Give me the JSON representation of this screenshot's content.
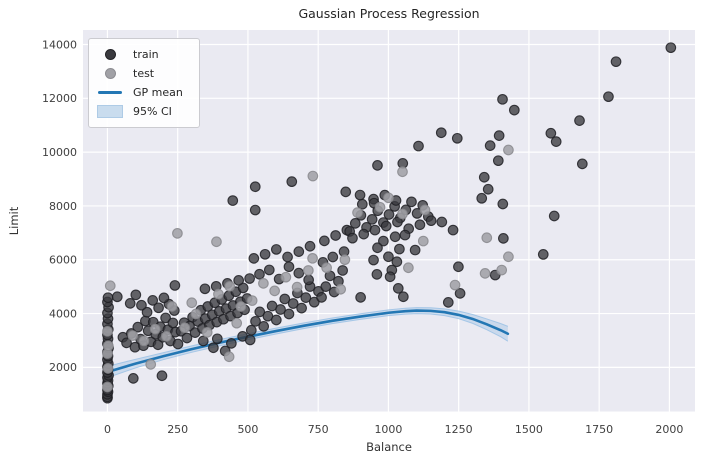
{
  "chart_data": {
    "type": "scatter",
    "title": "Gaussian Process Regression",
    "xlabel": "Balance",
    "ylabel": "Limit",
    "xlim": [
      -87,
      2091
    ],
    "ylim": [
      360,
      14540
    ],
    "xticks": [
      0,
      250,
      500,
      750,
      1000,
      1250,
      1500,
      1750,
      2000
    ],
    "yticks": [
      2000,
      4000,
      6000,
      8000,
      10000,
      12000,
      14000
    ],
    "grid": true,
    "legend_position": "upper-left",
    "style": {
      "plot_background": "#eaeaf2",
      "grid_color": "#ffffff",
      "tick_label_color": "#404040",
      "text_color": "#262626",
      "train_color": "#3a3a3f",
      "train_edge": "#1f1f23",
      "test_color": "#a1a1a6",
      "test_edge": "#87878c",
      "line_color": "#2377b4",
      "band_color": "#aecbe8",
      "band_edge": "#9ec3e6"
    },
    "series": [
      {
        "name": "train",
        "type": "scatter",
        "color": "#3a3a3f",
        "points": [
          [
            0,
            855
          ],
          [
            0,
            905
          ],
          [
            0,
            1000
          ],
          [
            2,
            1093
          ],
          [
            0,
            1160
          ],
          [
            3,
            1311
          ],
          [
            0,
            1410
          ],
          [
            2,
            1511
          ],
          [
            0,
            1617
          ],
          [
            4,
            1705
          ],
          [
            0,
            1809
          ],
          [
            2,
            1911
          ],
          [
            0,
            2021
          ],
          [
            3,
            2137
          ],
          [
            0,
            2290
          ],
          [
            2,
            2420
          ],
          [
            0,
            2570
          ],
          [
            4,
            2720
          ],
          [
            0,
            2880
          ],
          [
            2,
            3064
          ],
          [
            0,
            3210
          ],
          [
            3,
            3411
          ],
          [
            0,
            3617
          ],
          [
            2,
            3810
          ],
          [
            0,
            4020
          ],
          [
            4,
            4235
          ],
          [
            0,
            4430
          ],
          [
            2,
            4591
          ],
          [
            35,
            4624
          ],
          [
            81,
            4380
          ],
          [
            92,
            1592
          ],
          [
            194,
            1688
          ],
          [
            55,
            3120
          ],
          [
            68,
            2910
          ],
          [
            85,
            3260
          ],
          [
            98,
            2750
          ],
          [
            108,
            3495
          ],
          [
            118,
            3052
          ],
          [
            128,
            2806
          ],
          [
            135,
            3722
          ],
          [
            145,
            3360
          ],
          [
            155,
            2950
          ],
          [
            163,
            3680
          ],
          [
            172,
            3230
          ],
          [
            180,
            2842
          ],
          [
            188,
            3510
          ],
          [
            197,
            3121
          ],
          [
            207,
            3838
          ],
          [
            215,
            3400
          ],
          [
            224,
            2980
          ],
          [
            233,
            3652
          ],
          [
            242,
            3310
          ],
          [
            251,
            2871
          ],
          [
            238,
            4112
          ],
          [
            219,
            4351
          ],
          [
            201,
            4583
          ],
          [
            182,
            4214
          ],
          [
            161,
            4490
          ],
          [
            141,
            4051
          ],
          [
            121,
            4310
          ],
          [
            101,
            4697
          ],
          [
            240,
            5046
          ],
          [
            262,
            3342
          ],
          [
            273,
            3661
          ],
          [
            283,
            3093
          ],
          [
            292,
            3533
          ],
          [
            303,
            3866
          ],
          [
            312,
            3292
          ],
          [
            322,
            3705
          ],
          [
            332,
            4123
          ],
          [
            338,
            3444
          ],
          [
            348,
            3812
          ],
          [
            357,
            4265
          ],
          [
            363,
            3571
          ],
          [
            373,
            3954
          ],
          [
            382,
            4403
          ],
          [
            389,
            3682
          ],
          [
            398,
            4081
          ],
          [
            407,
            4522
          ],
          [
            413,
            3791
          ],
          [
            422,
            4183
          ],
          [
            432,
            4662
          ],
          [
            438,
            3904
          ],
          [
            447,
            4302
          ],
          [
            457,
            4812
          ],
          [
            463,
            4022
          ],
          [
            473,
            4441
          ],
          [
            483,
            4953
          ],
          [
            488,
            4141
          ],
          [
            497,
            4560
          ],
          [
            467,
            5234
          ],
          [
            427,
            5121
          ],
          [
            387,
            5012
          ],
          [
            347,
            4921
          ],
          [
            377,
            2730
          ],
          [
            419,
            2608
          ],
          [
            341,
            2981
          ],
          [
            391,
            3062
          ],
          [
            441,
            2892
          ],
          [
            481,
            3153
          ],
          [
            508,
            3021
          ],
          [
            512,
            3381
          ],
          [
            527,
            3712
          ],
          [
            542,
            4064
          ],
          [
            556,
            3524
          ],
          [
            571,
            3903
          ],
          [
            586,
            4281
          ],
          [
            601,
            3762
          ],
          [
            616,
            4152
          ],
          [
            631,
            4543
          ],
          [
            646,
            3983
          ],
          [
            661,
            4373
          ],
          [
            676,
            4764
          ],
          [
            691,
            4203
          ],
          [
            706,
            4593
          ],
          [
            721,
            5004
          ],
          [
            736,
            4424
          ],
          [
            751,
            4824
          ],
          [
            716,
            5253
          ],
          [
            681,
            5503
          ],
          [
            646,
            5742
          ],
          [
            611,
            5283
          ],
          [
            576,
            5622
          ],
          [
            541,
            5462
          ],
          [
            506,
            5302
          ],
          [
            521,
            6051
          ],
          [
            561,
            6203
          ],
          [
            601,
            6384
          ],
          [
            641,
            6103
          ],
          [
            681,
            6303
          ],
          [
            721,
            6503
          ],
          [
            446,
            8200
          ],
          [
            526,
            8715
          ],
          [
            526,
            7848
          ],
          [
            656,
            8903
          ],
          [
            848,
            8524
          ],
          [
            762,
            4602
          ],
          [
            777,
            5002
          ],
          [
            792,
            5403
          ],
          [
            807,
            4803
          ],
          [
            822,
            5203
          ],
          [
            837,
            5603
          ],
          [
            767,
            5903
          ],
          [
            802,
            6103
          ],
          [
            842,
            6303
          ],
          [
            772,
            6703
          ],
          [
            812,
            6903
          ],
          [
            852,
            7103
          ],
          [
            862,
            7053
          ],
          [
            882,
            7353
          ],
          [
            902,
            7653
          ],
          [
            922,
            7203
          ],
          [
            942,
            7503
          ],
          [
            962,
            7823
          ],
          [
            982,
            7383
          ],
          [
            1002,
            7683
          ],
          [
            1022,
            7983
          ],
          [
            1042,
            7553
          ],
          [
            1062,
            7853
          ],
          [
            1082,
            8153
          ],
          [
            1102,
            7723
          ],
          [
            1122,
            8023
          ],
          [
            1142,
            7603
          ],
          [
            907,
            8063
          ],
          [
            947,
            8253
          ],
          [
            987,
            8403
          ],
          [
            1027,
            8203
          ],
          [
            872,
            6803
          ],
          [
            912,
            6953
          ],
          [
            952,
            7103
          ],
          [
            992,
            7253
          ],
          [
            1032,
            7403
          ],
          [
            1072,
            7153
          ],
          [
            1112,
            7303
          ],
          [
            1152,
            7453
          ],
          [
            899,
            8405
          ],
          [
            949,
            8103
          ],
          [
            961,
            9508
          ],
          [
            1051,
            9583
          ],
          [
            901,
            4602
          ],
          [
            1035,
            4937
          ],
          [
            1053,
            4625
          ],
          [
            1213,
            4416
          ],
          [
            1255,
            4751
          ],
          [
            1249,
            5740
          ],
          [
            982,
            6695
          ],
          [
            1024,
            6855
          ],
          [
            1059,
            6918
          ],
          [
            961,
            6446
          ],
          [
            1039,
            6397
          ],
          [
            1095,
            6360
          ],
          [
            1000,
            6112
          ],
          [
            947,
            5989
          ],
          [
            1030,
            5926
          ],
          [
            1012,
            5617
          ],
          [
            959,
            5457
          ],
          [
            1006,
            5368
          ],
          [
            1188,
            10722
          ],
          [
            1107,
            10226
          ],
          [
            1245,
            10515
          ],
          [
            1190,
            7403
          ],
          [
            1230,
            7103
          ],
          [
            1406,
            11963
          ],
          [
            1448,
            11563
          ],
          [
            1394,
            10613
          ],
          [
            1362,
            10242
          ],
          [
            1391,
            9683
          ],
          [
            1341,
            9066
          ],
          [
            1355,
            8620
          ],
          [
            1332,
            8285
          ],
          [
            1407,
            8073
          ],
          [
            1409,
            6795
          ],
          [
            1380,
            5432
          ],
          [
            1551,
            6199
          ],
          [
            1578,
            10703
          ],
          [
            1597,
            10392
          ],
          [
            1690,
            9563
          ],
          [
            1590,
            7627
          ],
          [
            1680,
            11172
          ],
          [
            1783,
            12062
          ],
          [
            1810,
            13363
          ],
          [
            2005,
            13883
          ]
        ]
      },
      {
        "name": "test",
        "type": "scatter",
        "color": "#a1a1a6",
        "points": [
          [
            0,
            1270
          ],
          [
            2,
            1963
          ],
          [
            0,
            2513
          ],
          [
            3,
            2801
          ],
          [
            0,
            3340
          ],
          [
            10,
            5034
          ],
          [
            154,
            2112
          ],
          [
            90,
            3183
          ],
          [
            130,
            2983
          ],
          [
            170,
            3423
          ],
          [
            210,
            3153
          ],
          [
            230,
            4263
          ],
          [
            249,
            6982
          ],
          [
            275,
            3473
          ],
          [
            315,
            3983
          ],
          [
            355,
            3303
          ],
          [
            395,
            4723
          ],
          [
            433,
            2396
          ],
          [
            435,
            5013
          ],
          [
            475,
            4263
          ],
          [
            300,
            4403
          ],
          [
            460,
            3643
          ],
          [
            388,
            6670
          ],
          [
            515,
            4483
          ],
          [
            555,
            5123
          ],
          [
            595,
            4843
          ],
          [
            635,
            5353
          ],
          [
            675,
            4983
          ],
          [
            715,
            5603
          ],
          [
            730,
            6053
          ],
          [
            780,
            5703
          ],
          [
            830,
            4903
          ],
          [
            845,
            6003
          ],
          [
            890,
            7753
          ],
          [
            970,
            7953
          ],
          [
            1050,
            7703
          ],
          [
            1130,
            7853
          ],
          [
            731,
            9111
          ],
          [
            1050,
            9272
          ],
          [
            1071,
            5703
          ],
          [
            1124,
            6695
          ],
          [
            1000,
            8303
          ],
          [
            1237,
            5060
          ],
          [
            1344,
            5494
          ],
          [
            1403,
            5617
          ],
          [
            1427,
            6112
          ],
          [
            1350,
            6818
          ],
          [
            1427,
            10080
          ]
        ]
      },
      {
        "name": "GP mean",
        "type": "line",
        "color": "#2377b4",
        "points": [
          [
            0,
            1830
          ],
          [
            100,
            2140
          ],
          [
            200,
            2420
          ],
          [
            300,
            2680
          ],
          [
            400,
            2920
          ],
          [
            500,
            3140
          ],
          [
            600,
            3350
          ],
          [
            700,
            3550
          ],
          [
            800,
            3730
          ],
          [
            900,
            3890
          ],
          [
            1000,
            4030
          ],
          [
            1060,
            4090
          ],
          [
            1100,
            4110
          ],
          [
            1150,
            4100
          ],
          [
            1200,
            4050
          ],
          [
            1250,
            3950
          ],
          [
            1300,
            3800
          ],
          [
            1350,
            3600
          ],
          [
            1400,
            3380
          ],
          [
            1425,
            3250
          ]
        ]
      },
      {
        "name": "95% CI",
        "type": "band",
        "color": "#aecbe8",
        "x": [
          0,
          100,
          200,
          300,
          400,
          500,
          600,
          700,
          800,
          900,
          1000,
          1060,
          1100,
          1150,
          1200,
          1250,
          1300,
          1350,
          1400,
          1425
        ],
        "upper": [
          2040,
          2300,
          2550,
          2800,
          3035,
          3250,
          3458,
          3656,
          3835,
          3995,
          4138,
          4200,
          4222,
          4216,
          4175,
          4090,
          3965,
          3800,
          3625,
          3525
        ],
        "lower": [
          1620,
          1980,
          2290,
          2560,
          2805,
          3030,
          3242,
          3444,
          3625,
          3785,
          3922,
          3980,
          3998,
          3984,
          3925,
          3810,
          3635,
          3400,
          3135,
          2975
        ]
      }
    ]
  }
}
